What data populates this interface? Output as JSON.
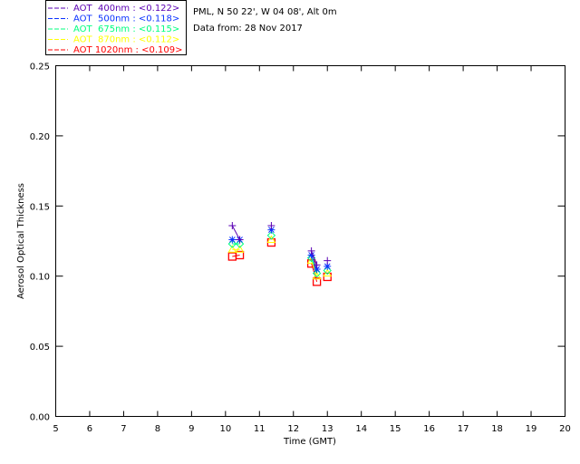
{
  "header": {
    "site": "PML, N 50 22', W 04 08', Alt 0m",
    "date": "Data from: 28 Nov 2017"
  },
  "chart_data": {
    "type": "scatter",
    "xlabel": "Time (GMT)",
    "ylabel": "Aerosol Optical Thickness",
    "xlim": [
      5,
      20
    ],
    "ylim": [
      0,
      0.25
    ],
    "xticks": [
      "5",
      "6",
      "7",
      "8",
      "9",
      "10",
      "11",
      "12",
      "13",
      "14",
      "15",
      "16",
      "17",
      "18",
      "19",
      "20"
    ],
    "yticks": [
      "0.00",
      "0.05",
      "0.10",
      "0.15",
      "0.20",
      "0.25"
    ],
    "legend_position": "top-left-outside",
    "x": [
      10.2,
      10.42,
      11.35,
      12.53,
      12.69,
      13.0
    ],
    "segments": [
      [
        0,
        1
      ],
      [
        2,
        2
      ],
      [
        3,
        4
      ],
      [
        5,
        5
      ]
    ],
    "series": [
      {
        "name": "AOT  400nm : <0.122>",
        "color": "#5a00b4",
        "marker": "plus",
        "values": [
          0.136,
          0.126,
          0.136,
          0.118,
          0.108,
          0.111
        ]
      },
      {
        "name": "AOT  500nm : <0.118>",
        "color": "#0a32ff",
        "marker": "asterisk",
        "values": [
          0.126,
          0.126,
          0.133,
          0.115,
          0.105,
          0.107
        ]
      },
      {
        "name": "AOT  675nm : <0.115>",
        "color": "#00ff80",
        "marker": "diamond",
        "values": [
          0.123,
          0.123,
          0.129,
          0.113,
          0.102,
          0.104
        ]
      },
      {
        "name": "AOT  870nm : <0.112>",
        "color": "#ffff00",
        "marker": "triangle",
        "values": [
          0.119,
          0.119,
          0.126,
          0.111,
          0.1,
          0.102
        ]
      },
      {
        "name": "AOT 1020nm : <0.109>",
        "color": "#ff0000",
        "marker": "square",
        "values": [
          0.114,
          0.115,
          0.124,
          0.109,
          0.096,
          0.0995
        ]
      }
    ]
  }
}
